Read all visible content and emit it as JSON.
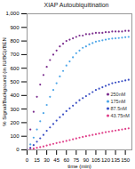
{
  "chart_data": {
    "type": "scatter",
    "title": "XIAP Autoubiquitination",
    "x_label": "time (min)",
    "y_label": "% Signal/Background (in IU/BG)/BEN",
    "x": [
      0,
      5,
      10,
      15,
      20,
      25,
      30,
      35,
      40,
      45,
      50,
      55,
      60,
      65,
      70,
      75,
      80,
      85,
      90,
      95,
      100,
      105,
      110,
      115,
      120,
      125,
      130,
      135,
      140,
      145,
      150,
      155
    ],
    "series": [
      {
        "name": "250nM",
        "color": "#7b2d8e",
        "marker": "circle",
        "values": [
          0,
          150,
          280,
          390,
          480,
          550,
          610,
          660,
          700,
          730,
          760,
          780,
          800,
          810,
          820,
          830,
          840,
          840,
          850,
          850,
          855,
          860,
          860,
          860,
          865,
          865,
          870,
          870,
          870,
          870,
          875,
          875
        ]
      },
      {
        "name": "175nM",
        "color": "#4da6e8",
        "marker": "circle",
        "values": [
          0,
          40,
          90,
          150,
          210,
          270,
          330,
          390,
          440,
          490,
          540,
          580,
          620,
          650,
          680,
          710,
          730,
          750,
          760,
          775,
          785,
          795,
          800,
          805,
          810,
          815,
          818,
          820,
          822,
          825,
          828,
          830
        ]
      },
      {
        "name": "87.5nM",
        "color": "#3a4fc4",
        "marker": "circle",
        "values": [
          0,
          15,
          35,
          60,
          85,
          110,
          140,
          165,
          190,
          215,
          240,
          260,
          285,
          305,
          325,
          345,
          365,
          380,
          395,
          410,
          425,
          440,
          450,
          460,
          470,
          480,
          490,
          495,
          500,
          505,
          510,
          515
        ]
      },
      {
        "name": "43.75nM",
        "color": "#e0408a",
        "marker": "circle",
        "values": [
          0,
          5,
          10,
          15,
          20,
          25,
          32,
          38,
          44,
          50,
          55,
          60,
          66,
          72,
          78,
          84,
          90,
          95,
          100,
          105,
          110,
          115,
          120,
          125,
          130,
          134,
          138,
          142,
          146,
          150,
          154,
          158
        ]
      }
    ],
    "xlim": [
      0,
      160
    ],
    "xticks": [
      0,
      15,
      30,
      45,
      60,
      75,
      90,
      105,
      120,
      135,
      150
    ],
    "ylim": [
      0,
      1000
    ],
    "yticks": [
      0,
      100,
      200,
      300,
      400,
      500,
      600,
      700,
      800,
      900,
      1000
    ],
    "legend": "right"
  }
}
